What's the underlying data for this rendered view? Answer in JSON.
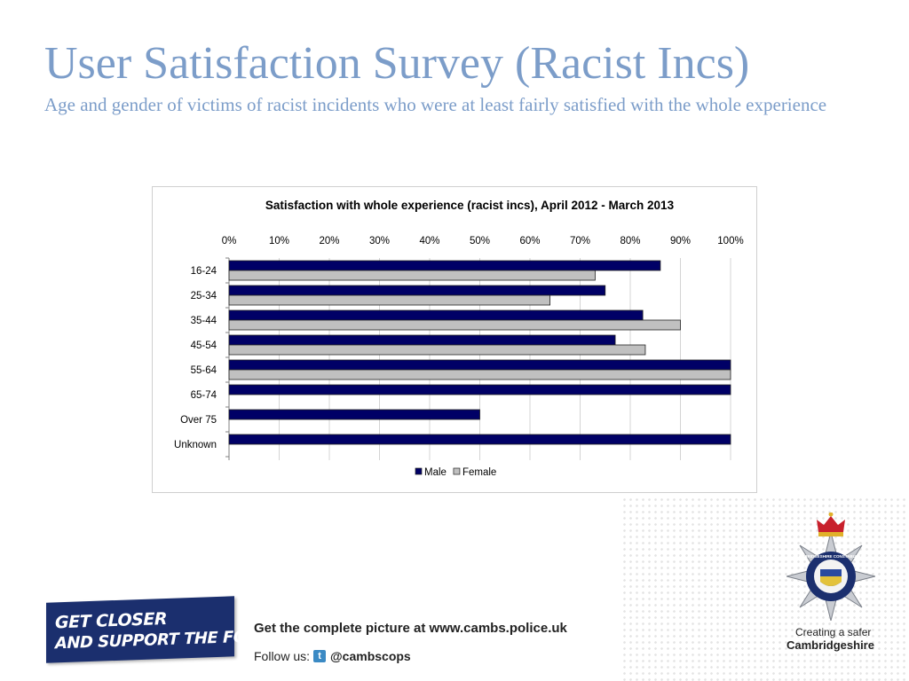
{
  "slide": {
    "title": "User Satisfaction Survey (Racist Incs)",
    "subtitle": "Age and gender of victims of racist incidents who were at least fairly satisfied with the whole experience"
  },
  "chart_data": {
    "type": "bar",
    "orientation": "horizontal",
    "title": "Satisfaction with whole experience  (racist incs), April 2012 - March 2013",
    "categories": [
      "16-24",
      "25-34",
      "35-44",
      "45-54",
      "55-64",
      "65-74",
      "Over 75",
      "Unknown"
    ],
    "series": [
      {
        "name": "Male",
        "values": [
          86,
          75,
          82.5,
          77,
          100,
          100,
          50,
          100
        ],
        "color": "#000066"
      },
      {
        "name": "Female",
        "values": [
          73,
          64,
          90,
          83,
          100,
          null,
          null,
          null
        ],
        "color": "#c0c0c0"
      }
    ],
    "x_ticks": [
      "0%",
      "10%",
      "20%",
      "30%",
      "40%",
      "50%",
      "60%",
      "70%",
      "80%",
      "90%",
      "100%"
    ],
    "xlim": [
      0,
      100
    ],
    "x_axis_position": "top",
    "grid": true,
    "legend": "bottom"
  },
  "footer": {
    "campaign_line1": "GET CLOSER",
    "campaign_line2": "AND SUPPORT THE FORCE!",
    "website": "Get the complete picture at www.cambs.police.uk",
    "follow_label": "Follow us:",
    "twitter_letter": "t",
    "twitter_handle": "@cambscops",
    "tagline_line1": "Creating a safer",
    "tagline_line2": "Cambridgeshire",
    "crest_text": "CAMBRIDGESHIRE CONSTABULARY"
  },
  "icons": {
    "twitter": "twitter-icon",
    "crest": "police-crest-icon"
  }
}
